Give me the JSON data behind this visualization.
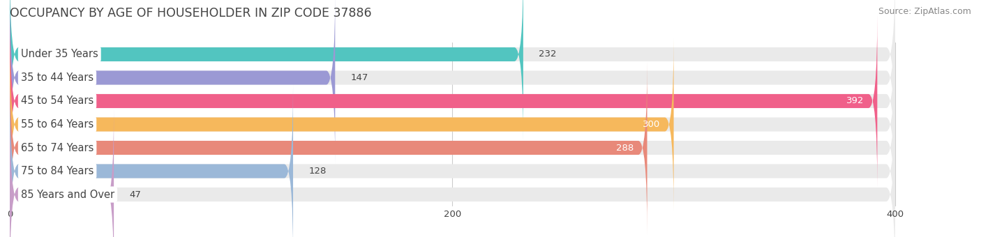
{
  "title": "OCCUPANCY BY AGE OF HOUSEHOLDER IN ZIP CODE 37886",
  "source": "Source: ZipAtlas.com",
  "categories": [
    "Under 35 Years",
    "35 to 44 Years",
    "45 to 54 Years",
    "55 to 64 Years",
    "65 to 74 Years",
    "75 to 84 Years",
    "85 Years and Over"
  ],
  "values": [
    232,
    147,
    392,
    300,
    288,
    128,
    47
  ],
  "bar_colors": [
    "#52C5C0",
    "#9B99D4",
    "#F0608A",
    "#F6B85C",
    "#E8897A",
    "#9BB8D8",
    "#C89DC8"
  ],
  "bar_bg_color": "#EAEAEA",
  "background_color": "#FFFFFF",
  "xlim_min": 0,
  "xlim_max": 430,
  "xaxis_max": 400,
  "title_fontsize": 12.5,
  "source_fontsize": 9,
  "label_fontsize": 10.5,
  "value_fontsize": 9.5,
  "bar_height": 0.6,
  "label_bg_color": "#FFFFFF",
  "grid_color": "#CCCCCC",
  "text_color": "#444444",
  "source_color": "#888888"
}
